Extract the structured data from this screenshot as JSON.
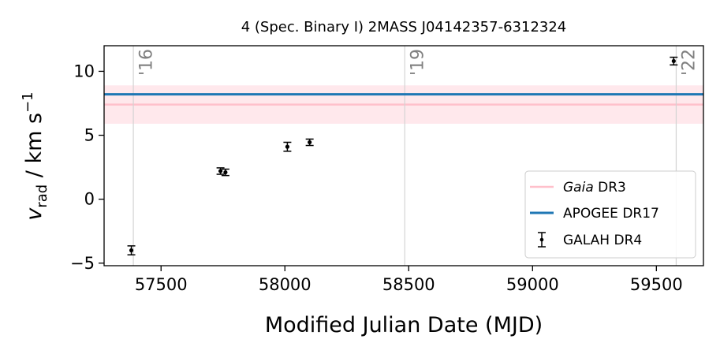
{
  "chart_data": {
    "type": "scatter",
    "title": "4 (Spec. Binary I) 2MASS J04142357-6312324",
    "xlabel": "Modified Julian Date (MJD)",
    "ylabel_main": "v",
    "ylabel_sub": "rad",
    "ylabel_units": " / km s",
    "ylabel_exp": "−1",
    "xlim": [
      57270,
      59690
    ],
    "ylim": [
      -5.2,
      12.0
    ],
    "x_ticks": [
      57500,
      58000,
      58500,
      59000,
      59500
    ],
    "x_tick_labels": [
      "57500",
      "58000",
      "58500",
      "59000",
      "59500"
    ],
    "y_ticks": [
      -5,
      0,
      5,
      10
    ],
    "y_tick_labels": [
      "−5",
      "0",
      "5",
      "10"
    ],
    "year_lines": [
      {
        "x": 57388,
        "label": "'16"
      },
      {
        "x": 58484,
        "label": "'19"
      },
      {
        "x": 59580,
        "label": "'22"
      }
    ],
    "gaia_dr3": {
      "value": 7.4,
      "band": [
        5.9,
        8.9
      ],
      "color": "#ffc0cb",
      "band_color": "#ffe8ec"
    },
    "apogee_dr17": {
      "value": 8.2,
      "color": "#1f77b4"
    },
    "galah_dr4": {
      "color": "#000000",
      "points": [
        {
          "x": 57380,
          "y": -4.0,
          "err": 0.35
        },
        {
          "x": 57740,
          "y": 2.2,
          "err": 0.25
        },
        {
          "x": 57760,
          "y": 2.1,
          "err": 0.25
        },
        {
          "x": 58010,
          "y": 4.1,
          "err": 0.35
        },
        {
          "x": 58100,
          "y": 4.45,
          "err": 0.25
        },
        {
          "x": 59570,
          "y": 10.8,
          "err": 0.3
        }
      ]
    },
    "grid": false,
    "legend_position": "lower-right",
    "legend": [
      {
        "italic": "Gaia",
        "text": " DR3",
        "kind": "line",
        "color": "#ffc0cb"
      },
      {
        "italic": "",
        "text": "APOGEE DR17",
        "kind": "line",
        "color": "#1f77b4"
      },
      {
        "italic": "",
        "text": "GALAH DR4",
        "kind": "errorbar",
        "color": "#000000"
      }
    ]
  }
}
